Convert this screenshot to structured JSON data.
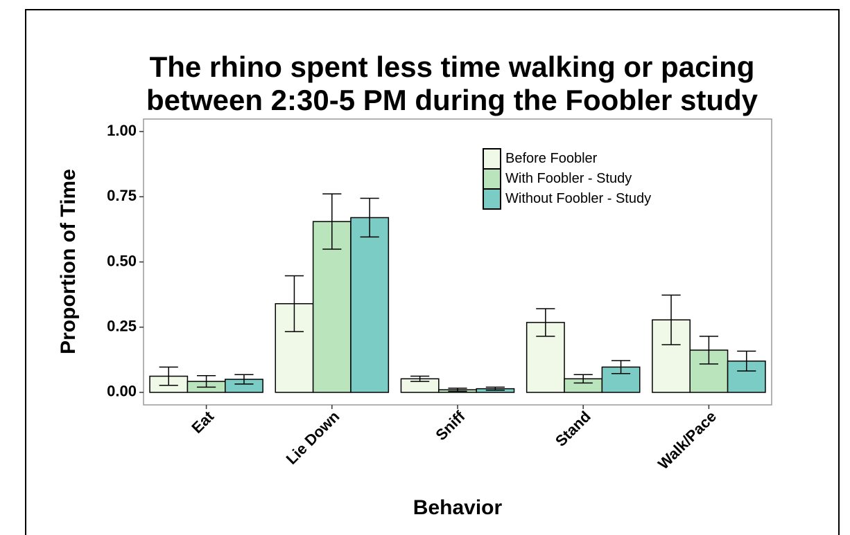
{
  "chart_data": {
    "type": "bar",
    "title": [
      "The rhino spent less time walking or pacing",
      "between 2:30-5 PM during the Foobler study"
    ],
    "x_label": "Behavior",
    "y_label": "Proportion of Time",
    "categories": [
      "Eat",
      "Lie Down",
      "Sniff",
      "Stand",
      "Walk/Pace"
    ],
    "series": [
      {
        "name": "Before Foobler",
        "color": "#f0f9e8",
        "values": [
          0.062,
          0.34,
          0.052,
          0.268,
          0.278
        ],
        "errors": [
          0.035,
          0.107,
          0.01,
          0.053,
          0.095
        ]
      },
      {
        "name": "With Foobler - Study",
        "color": "#bae4bc",
        "values": [
          0.042,
          0.655,
          0.01,
          0.052,
          0.162
        ],
        "errors": [
          0.022,
          0.106,
          0.006,
          0.016,
          0.053
        ]
      },
      {
        "name": "Without Foobler - Study",
        "color": "#7bccc4",
        "values": [
          0.05,
          0.67,
          0.014,
          0.097,
          0.12
        ],
        "errors": [
          0.018,
          0.074,
          0.006,
          0.025,
          0.038
        ]
      }
    ],
    "ylim": [
      -0.048,
      1.048
    ],
    "yticks": [
      {
        "value": 0,
        "label": "0.00"
      },
      {
        "value": 0.25,
        "label": "0.25"
      },
      {
        "value": 0.5,
        "label": "0.50"
      },
      {
        "value": 0.75,
        "label": "0.75"
      },
      {
        "value": 1,
        "label": "1.00"
      }
    ],
    "grid": false,
    "legend": "top-right"
  }
}
